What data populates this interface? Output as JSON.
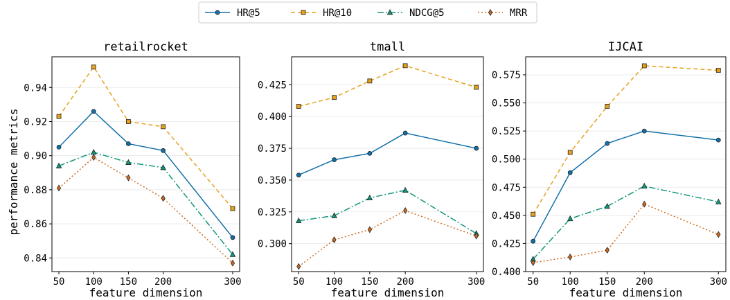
{
  "legend": [
    {
      "name": "HR@5",
      "color": "#1170aa",
      "dash": "",
      "marker": "circle"
    },
    {
      "name": "HR@10",
      "color": "#e5a11c",
      "dash": "6,4",
      "marker": "square"
    },
    {
      "name": "NDCG@5",
      "color": "#11967a",
      "dash": "9,3,2,3",
      "marker": "triangle"
    },
    {
      "name": "MRR",
      "color": "#cf6a1e",
      "dash": "2,3",
      "marker": "diamond"
    }
  ],
  "ylabel": "performance metrics",
  "chart_data": [
    {
      "type": "line",
      "title": "retailrocket",
      "xlabel": "feature dimension",
      "x": [
        50,
        100,
        150,
        200,
        300
      ],
      "xlim": [
        40,
        310
      ],
      "ylim": [
        0.832,
        0.958
      ],
      "yticks": [
        "0.84",
        "0.86",
        "0.88",
        "0.90",
        "0.92",
        "0.94"
      ],
      "ytick_values": [
        0.84,
        0.86,
        0.88,
        0.9,
        0.92,
        0.94
      ],
      "grid": true,
      "series": [
        {
          "name": "HR@5",
          "values": [
            0.905,
            0.926,
            0.907,
            0.903,
            0.852
          ]
        },
        {
          "name": "HR@10",
          "values": [
            0.923,
            0.952,
            0.92,
            0.917,
            0.869
          ]
        },
        {
          "name": "NDCG@5",
          "values": [
            0.894,
            0.902,
            0.896,
            0.893,
            0.842
          ]
        },
        {
          "name": "MRR",
          "values": [
            0.881,
            0.899,
            0.887,
            0.875,
            0.837
          ]
        }
      ]
    },
    {
      "type": "line",
      "title": "tmall",
      "xlabel": "feature dimension",
      "x": [
        50,
        100,
        150,
        200,
        300
      ],
      "xlim": [
        40,
        310
      ],
      "ylim": [
        0.278,
        0.447
      ],
      "yticks": [
        "0.300",
        "0.325",
        "0.350",
        "0.375",
        "0.400",
        "0.425"
      ],
      "ytick_values": [
        0.3,
        0.325,
        0.35,
        0.375,
        0.4,
        0.425
      ],
      "grid": true,
      "series": [
        {
          "name": "HR@5",
          "values": [
            0.354,
            0.366,
            0.371,
            0.387,
            0.375
          ]
        },
        {
          "name": "HR@10",
          "values": [
            0.408,
            0.415,
            0.428,
            0.44,
            0.423
          ]
        },
        {
          "name": "NDCG@5",
          "values": [
            0.318,
            0.322,
            0.336,
            0.342,
            0.308
          ]
        },
        {
          "name": "MRR",
          "values": [
            0.282,
            0.303,
            0.311,
            0.326,
            0.306
          ]
        }
      ]
    },
    {
      "type": "line",
      "title": "IJCAI",
      "xlabel": "feature dimension",
      "x": [
        50,
        100,
        150,
        200,
        300
      ],
      "xlim": [
        40,
        310
      ],
      "ylim": [
        0.4,
        0.591
      ],
      "yticks": [
        "0.400",
        "0.425",
        "0.450",
        "0.475",
        "0.500",
        "0.525",
        "0.550",
        "0.575"
      ],
      "ytick_values": [
        0.4,
        0.425,
        0.45,
        0.475,
        0.5,
        0.525,
        0.55,
        0.575
      ],
      "grid": true,
      "series": [
        {
          "name": "HR@5",
          "values": [
            0.427,
            0.488,
            0.514,
            0.525,
            0.517
          ]
        },
        {
          "name": "HR@10",
          "values": [
            0.451,
            0.506,
            0.547,
            0.583,
            0.579
          ]
        },
        {
          "name": "NDCG@5",
          "values": [
            0.411,
            0.447,
            0.458,
            0.476,
            0.462
          ]
        },
        {
          "name": "MRR",
          "values": [
            0.408,
            0.413,
            0.419,
            0.46,
            0.433
          ]
        }
      ]
    }
  ]
}
